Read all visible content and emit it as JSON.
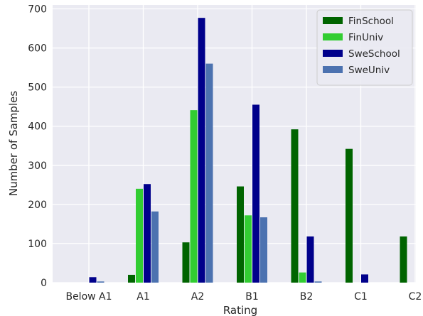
{
  "chart_data": {
    "type": "bar",
    "title": "",
    "xlabel": "Rating",
    "ylabel": "Number of Samples",
    "categories": [
      "Below A1",
      "A1",
      "A2",
      "B1",
      "B2",
      "C1",
      "C2"
    ],
    "ylim": [
      0,
      710
    ],
    "yticks": [
      0,
      100,
      200,
      300,
      400,
      500,
      600,
      700
    ],
    "grid": true,
    "legend_position": "top-right",
    "series": [
      {
        "name": "FinSchool",
        "color": "#006400",
        "values": [
          0,
          20,
          103,
          246,
          392,
          342,
          118
        ]
      },
      {
        "name": "FinUniv",
        "color": "#32cd32",
        "values": [
          0,
          240,
          441,
          172,
          26,
          0,
          0
        ]
      },
      {
        "name": "SweSchool",
        "color": "#00008b",
        "values": [
          14,
          252,
          677,
          455,
          118,
          21,
          0
        ]
      },
      {
        "name": "SweUniv",
        "color": "#4c72b0",
        "values": [
          3,
          182,
          560,
          167,
          3,
          0,
          0
        ]
      }
    ]
  },
  "style": {
    "background": "#eaeaf2",
    "grid_color": "#ffffff"
  }
}
